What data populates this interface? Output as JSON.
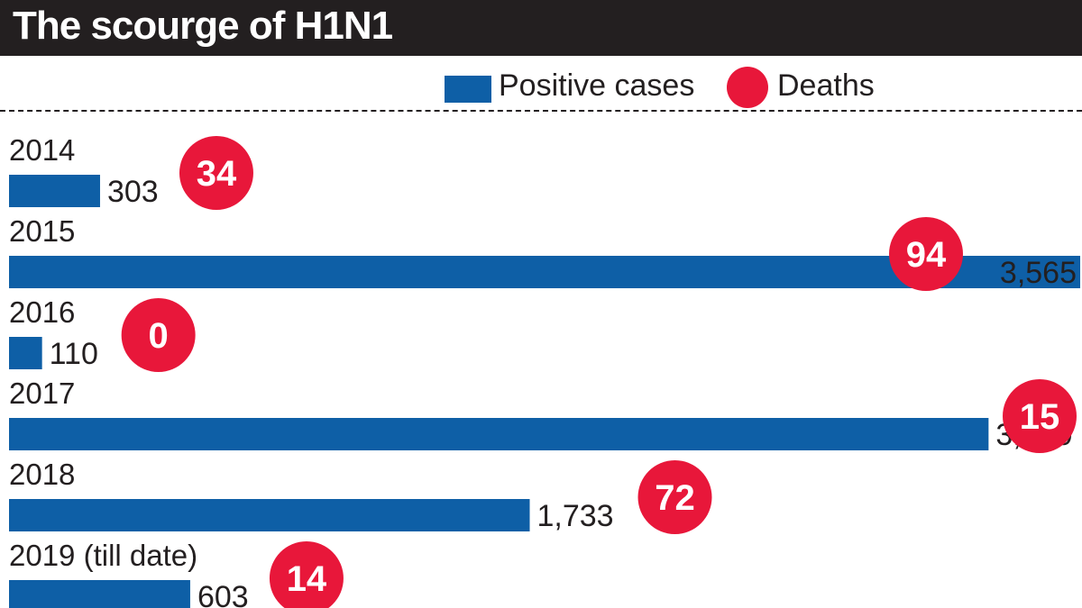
{
  "title": "The scourge of H1N1",
  "legend": {
    "cases_label": "Positive cases",
    "deaths_label": "Deaths"
  },
  "colors": {
    "bar": "#0e5fa6",
    "death_circle": "#e8173a",
    "title_bg": "#231f20"
  },
  "chart_data": {
    "type": "bar",
    "orientation": "horizontal",
    "title": "The scourge of H1N1",
    "categories": [
      "2014",
      "2015",
      "2016",
      "2017",
      "2018",
      "2019 (till date)"
    ],
    "series": [
      {
        "name": "Positive cases",
        "values": [
          303,
          3565,
          110,
          3260,
          1733,
          603
        ]
      },
      {
        "name": "Deaths",
        "values": [
          34,
          94,
          0,
          15,
          72,
          14
        ]
      }
    ],
    "value_labels": [
      "303",
      "3,565",
      "110",
      "3,260",
      "1,733",
      "603"
    ],
    "death_labels": [
      "34",
      "94",
      "0",
      "15",
      "72",
      "14"
    ],
    "legend_position": "top-right",
    "grid": false
  }
}
